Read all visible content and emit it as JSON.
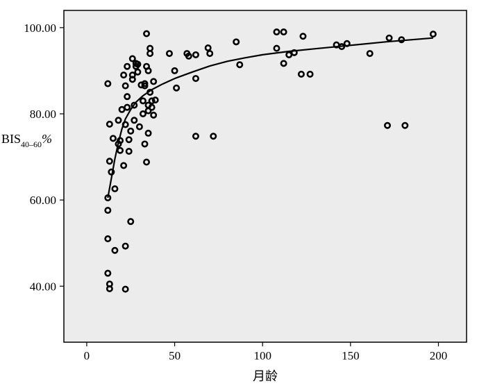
{
  "chart_data": {
    "type": "scatter",
    "title": "",
    "xlabel": "月龄",
    "ylabel": {
      "main": "BIS",
      "sub": "40–60",
      "suffix": "%"
    },
    "xlim": [
      -13,
      216
    ],
    "ylim": [
      27,
      104
    ],
    "xticks": [
      0,
      50,
      100,
      150,
      200
    ],
    "yticks": [
      40,
      60,
      80,
      100
    ],
    "xtick_labels": [
      "0",
      "50",
      "100",
      "150",
      "200"
    ],
    "ytick_labels": [
      "40.00",
      "60.00",
      "80.00",
      "100.00"
    ],
    "grid": false,
    "background": "#ececec",
    "points": [
      {
        "x": 12,
        "y": 87
      },
      {
        "x": 12,
        "y": 60.5
      },
      {
        "x": 12,
        "y": 57.6
      },
      {
        "x": 12,
        "y": 51
      },
      {
        "x": 12,
        "y": 43
      },
      {
        "x": 13,
        "y": 40.5
      },
      {
        "x": 13,
        "y": 39.4
      },
      {
        "x": 13,
        "y": 77.6
      },
      {
        "x": 13,
        "y": 69
      },
      {
        "x": 14,
        "y": 66.5
      },
      {
        "x": 15,
        "y": 74.3
      },
      {
        "x": 16,
        "y": 62.6
      },
      {
        "x": 16,
        "y": 48.3
      },
      {
        "x": 18,
        "y": 78.5
      },
      {
        "x": 18,
        "y": 73
      },
      {
        "x": 19,
        "y": 73.8
      },
      {
        "x": 19,
        "y": 71.5
      },
      {
        "x": 20,
        "y": 81
      },
      {
        "x": 21,
        "y": 89
      },
      {
        "x": 21,
        "y": 68
      },
      {
        "x": 22,
        "y": 86.5
      },
      {
        "x": 22,
        "y": 77.5
      },
      {
        "x": 22,
        "y": 49.3
      },
      {
        "x": 22,
        "y": 39.3
      },
      {
        "x": 23,
        "y": 91
      },
      {
        "x": 23,
        "y": 84
      },
      {
        "x": 23,
        "y": 81.5
      },
      {
        "x": 24,
        "y": 74
      },
      {
        "x": 24,
        "y": 71.3
      },
      {
        "x": 25,
        "y": 76
      },
      {
        "x": 25,
        "y": 55
      },
      {
        "x": 26,
        "y": 92.8
      },
      {
        "x": 26,
        "y": 89
      },
      {
        "x": 26,
        "y": 88
      },
      {
        "x": 27,
        "y": 82
      },
      {
        "x": 27,
        "y": 78.5
      },
      {
        "x": 28,
        "y": 91.7
      },
      {
        "x": 28,
        "y": 91
      },
      {
        "x": 29,
        "y": 91.5
      },
      {
        "x": 29,
        "y": 89.7
      },
      {
        "x": 30,
        "y": 77
      },
      {
        "x": 31,
        "y": 86.7
      },
      {
        "x": 32,
        "y": 83
      },
      {
        "x": 32,
        "y": 80
      },
      {
        "x": 33,
        "y": 87
      },
      {
        "x": 33,
        "y": 86.5
      },
      {
        "x": 33,
        "y": 73
      },
      {
        "x": 34,
        "y": 98.6
      },
      {
        "x": 34,
        "y": 91
      },
      {
        "x": 34,
        "y": 68.8
      },
      {
        "x": 35,
        "y": 90
      },
      {
        "x": 35,
        "y": 82
      },
      {
        "x": 35,
        "y": 80.7
      },
      {
        "x": 35,
        "y": 75.5
      },
      {
        "x": 36,
        "y": 95.2
      },
      {
        "x": 36,
        "y": 94
      },
      {
        "x": 36,
        "y": 85
      },
      {
        "x": 37,
        "y": 83
      },
      {
        "x": 37,
        "y": 81.5
      },
      {
        "x": 38,
        "y": 87.5
      },
      {
        "x": 38,
        "y": 79.7
      },
      {
        "x": 39,
        "y": 83.2
      },
      {
        "x": 47,
        "y": 94
      },
      {
        "x": 50,
        "y": 90
      },
      {
        "x": 51,
        "y": 86
      },
      {
        "x": 57,
        "y": 94
      },
      {
        "x": 58,
        "y": 93.4
      },
      {
        "x": 62,
        "y": 93.7
      },
      {
        "x": 62,
        "y": 88.2
      },
      {
        "x": 62,
        "y": 74.8
      },
      {
        "x": 69,
        "y": 95.3
      },
      {
        "x": 70,
        "y": 94
      },
      {
        "x": 72,
        "y": 74.8
      },
      {
        "x": 85,
        "y": 96.7
      },
      {
        "x": 87,
        "y": 91.4
      },
      {
        "x": 108,
        "y": 99
      },
      {
        "x": 108,
        "y": 95.2
      },
      {
        "x": 112,
        "y": 99
      },
      {
        "x": 112,
        "y": 91.7
      },
      {
        "x": 115,
        "y": 93.7
      },
      {
        "x": 118,
        "y": 94.2
      },
      {
        "x": 122,
        "y": 89.2
      },
      {
        "x": 123,
        "y": 98
      },
      {
        "x": 127,
        "y": 89.2
      },
      {
        "x": 142,
        "y": 96
      },
      {
        "x": 145,
        "y": 95.6
      },
      {
        "x": 148,
        "y": 96.3
      },
      {
        "x": 161,
        "y": 94
      },
      {
        "x": 171,
        "y": 77.3
      },
      {
        "x": 172,
        "y": 97.6
      },
      {
        "x": 179,
        "y": 97.2
      },
      {
        "x": 181,
        "y": 77.3
      },
      {
        "x": 197,
        "y": 98.5
      }
    ],
    "fit_line": [
      {
        "x": 12,
        "y": 60.5
      },
      {
        "x": 14,
        "y": 65
      },
      {
        "x": 16,
        "y": 69.5
      },
      {
        "x": 18,
        "y": 73.3
      },
      {
        "x": 20,
        "y": 76.5
      },
      {
        "x": 22,
        "y": 78.8
      },
      {
        "x": 25,
        "y": 81
      },
      {
        "x": 28,
        "y": 82.7
      },
      {
        "x": 32,
        "y": 84.2
      },
      {
        "x": 37,
        "y": 85.6
      },
      {
        "x": 43,
        "y": 86.9
      },
      {
        "x": 50,
        "y": 88.2
      },
      {
        "x": 60,
        "y": 89.7
      },
      {
        "x": 70,
        "y": 91.1
      },
      {
        "x": 80,
        "y": 92.2
      },
      {
        "x": 90,
        "y": 93
      },
      {
        "x": 100,
        "y": 93.7
      },
      {
        "x": 115,
        "y": 94.5
      },
      {
        "x": 130,
        "y": 95.1
      },
      {
        "x": 150,
        "y": 95.9
      },
      {
        "x": 170,
        "y": 96.7
      },
      {
        "x": 185,
        "y": 97.2
      },
      {
        "x": 197,
        "y": 97.6
      }
    ]
  }
}
